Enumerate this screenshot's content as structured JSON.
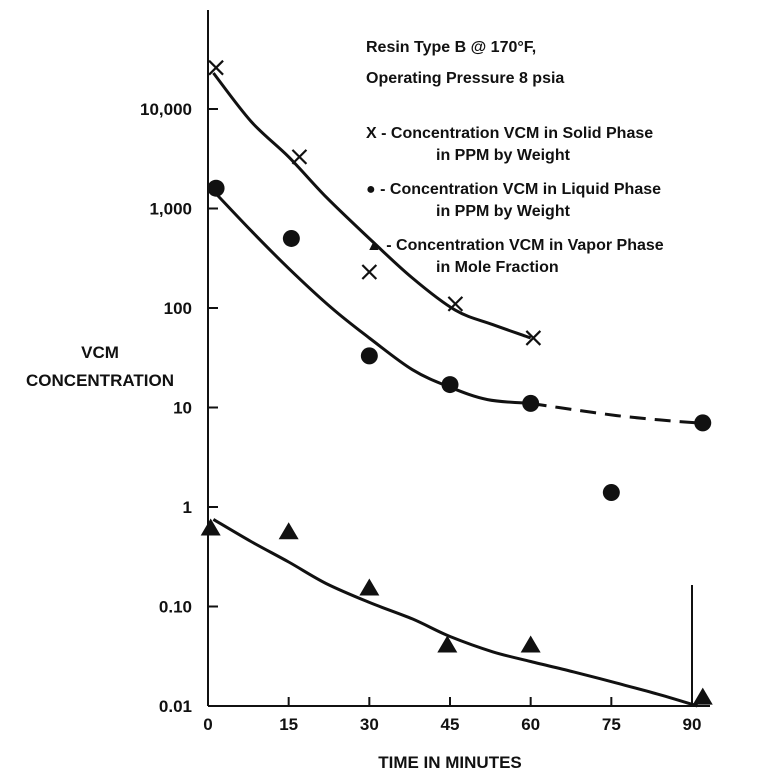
{
  "chart_data": {
    "type": "scatter",
    "title": "",
    "xlabel": "TIME IN MINUTES",
    "ylabel": [
      "VCM",
      "CONCENTRATION"
    ],
    "xlim": [
      0,
      92
    ],
    "ylim": [
      0.01,
      40000
    ],
    "y_scale": "log",
    "grid": false,
    "x_ticks": [
      {
        "value": 0,
        "label": "0"
      },
      {
        "value": 15,
        "label": "15"
      },
      {
        "value": 30,
        "label": "30"
      },
      {
        "value": 45,
        "label": "45"
      },
      {
        "value": 60,
        "label": "60"
      },
      {
        "value": 75,
        "label": "75"
      },
      {
        "value": 90,
        "label": "90"
      }
    ],
    "y_ticks": [
      {
        "value": 0.01,
        "label": "0.01"
      },
      {
        "value": 0.1,
        "label": "0.10"
      },
      {
        "value": 1,
        "label": "1"
      },
      {
        "value": 10,
        "label": "10"
      },
      {
        "value": 100,
        "label": "100"
      },
      {
        "value": 1000,
        "label": "1,000"
      },
      {
        "value": 10000,
        "label": "10,000"
      }
    ],
    "annotation": [
      "Resin Type B @ 170°F,",
      "Operating Pressure 8 psia"
    ],
    "legend_position": "top-right",
    "series": [
      {
        "name": "Concentration VCM in Solid Phase in PPM by Weight",
        "legend": [
          "X  -  Concentration VCM in Solid Phase",
          "in PPM by Weight"
        ],
        "marker": "x",
        "points": [
          [
            1.5,
            26000
          ],
          [
            17,
            3300
          ],
          [
            30,
            230
          ],
          [
            46,
            110
          ],
          [
            60.5,
            50
          ]
        ],
        "fit_curve": [
          [
            1,
            23000
          ],
          [
            8,
            7500
          ],
          [
            15,
            3300
          ],
          [
            22,
            1300
          ],
          [
            30,
            500
          ],
          [
            38,
            200
          ],
          [
            46,
            95
          ],
          [
            53,
            68
          ],
          [
            60,
            50
          ]
        ],
        "fit_dashed_from": null
      },
      {
        "name": "Concentration VCM in Liquid Phase in PPM by Weight",
        "legend": [
          "●  -  Concentration VCM in Liquid Phase",
          "in PPM by Weight"
        ],
        "marker": "circle",
        "points": [
          [
            1.5,
            1600
          ],
          [
            15.5,
            500
          ],
          [
            30,
            33
          ],
          [
            45,
            17
          ],
          [
            60,
            11
          ],
          [
            75,
            1.4
          ],
          [
            92,
            7
          ]
        ],
        "fit_curve": [
          [
            1,
            1500
          ],
          [
            8,
            600
          ],
          [
            15,
            250
          ],
          [
            23,
            100
          ],
          [
            30,
            50
          ],
          [
            38,
            24
          ],
          [
            45,
            16
          ],
          [
            52,
            12
          ],
          [
            60,
            11
          ],
          [
            68,
            9.5
          ],
          [
            76,
            8.3
          ],
          [
            84,
            7.5
          ],
          [
            91,
            7
          ]
        ],
        "fit_dashed_from": 60
      },
      {
        "name": "Concentration VCM in Vapor Phase in Mole Fraction",
        "legend": [
          "▲  -  Concentration VCM in Vapor Phase",
          "in Mole Fraction"
        ],
        "marker": "triangle",
        "points": [
          [
            0.5,
            0.6
          ],
          [
            15,
            0.55
          ],
          [
            30,
            0.15
          ],
          [
            44.5,
            0.04
          ],
          [
            60,
            0.04
          ],
          [
            92,
            0.012
          ]
        ],
        "fit_curve": [
          [
            1,
            0.75
          ],
          [
            8,
            0.45
          ],
          [
            15,
            0.28
          ],
          [
            22,
            0.17
          ],
          [
            30,
            0.11
          ],
          [
            38,
            0.075
          ],
          [
            45,
            0.05
          ],
          [
            53,
            0.035
          ],
          [
            60,
            0.028
          ],
          [
            68,
            0.022
          ],
          [
            76,
            0.017
          ],
          [
            84,
            0.013
          ],
          [
            91,
            0.01
          ]
        ],
        "fit_dashed_from": null
      }
    ]
  }
}
